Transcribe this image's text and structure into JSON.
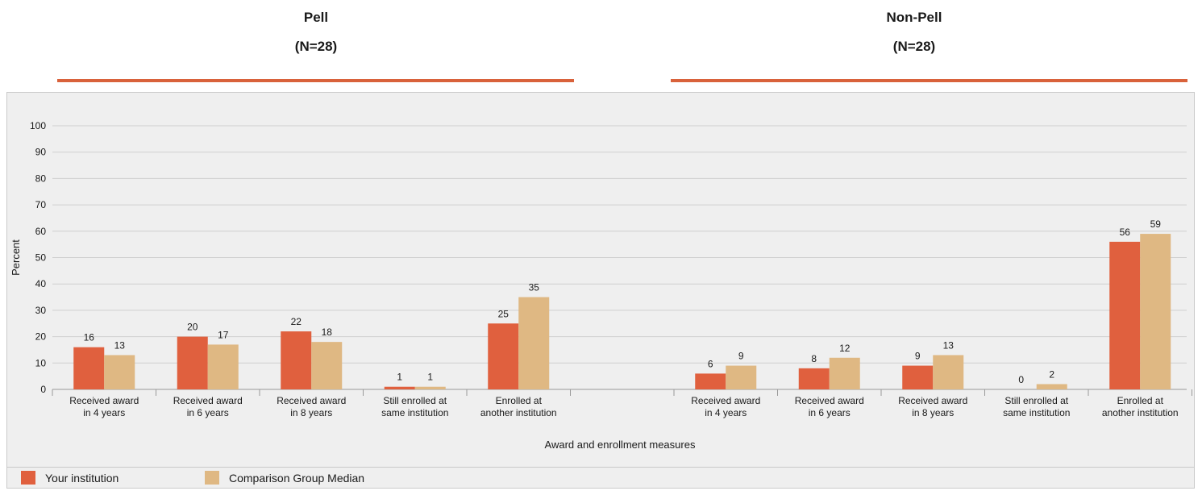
{
  "groups": [
    {
      "title": "Pell",
      "subtitle": "(N=28)"
    },
    {
      "title": "Non-Pell",
      "subtitle": "(N=28)"
    }
  ],
  "colors": {
    "your": "#e0603e",
    "comparison": "#dfb883",
    "rule": "#d9623b"
  },
  "legend": {
    "your": "Your institution",
    "comparison": "Comparison Group Median"
  },
  "chart_data": {
    "type": "bar",
    "xlabel": "Award and enrollment measures",
    "ylabel": "Percent",
    "ylim": [
      0,
      100
    ],
    "yticks": [
      0,
      10,
      20,
      30,
      40,
      50,
      60,
      70,
      80,
      90,
      100
    ],
    "grid": true,
    "legend_position": "bottom",
    "categories": [
      "Received award in 4 years",
      "Received award in 6 years",
      "Received award in 8 years",
      "Still enrolled at same institution",
      "Enrolled at another institution"
    ],
    "category_lines": [
      [
        "Received award",
        "in 4 years"
      ],
      [
        "Received award",
        "in 6 years"
      ],
      [
        "Received award",
        "in 8 years"
      ],
      [
        "Still enrolled at",
        "same institution"
      ],
      [
        "Enrolled at",
        "another institution"
      ]
    ],
    "panels": [
      {
        "group": "Pell",
        "series": [
          {
            "name": "Your institution",
            "values": [
              16,
              20,
              22,
              1,
              25
            ]
          },
          {
            "name": "Comparison Group Median",
            "values": [
              13,
              17,
              18,
              1,
              35
            ]
          }
        ]
      },
      {
        "group": "Non-Pell",
        "series": [
          {
            "name": "Your institution",
            "values": [
              6,
              8,
              9,
              0,
              56
            ]
          },
          {
            "name": "Comparison Group Median",
            "values": [
              9,
              12,
              13,
              2,
              59
            ]
          }
        ]
      }
    ]
  }
}
